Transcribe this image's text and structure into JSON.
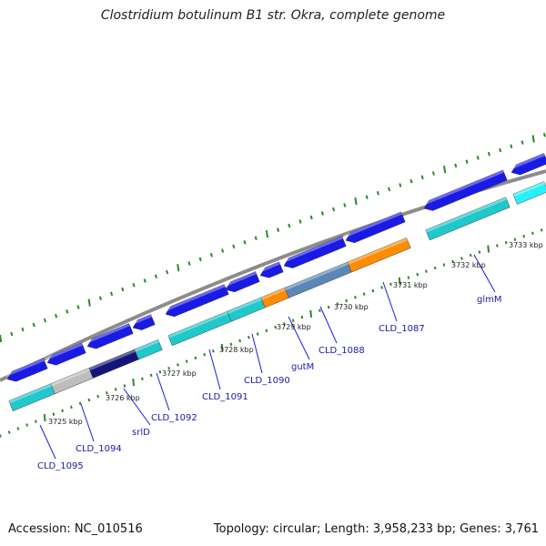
{
  "title": "Clostridium botulinum B1 str. Okra, complete genome",
  "footer": {
    "accession": "Accession: NC_010516",
    "summary": "Topology: circular; Length: 3,958,233 bp; Genes: 3,761"
  },
  "colors": {
    "backbone": "#8c8c8c",
    "cds_blue": "#1a1ae6",
    "cyan": "#20c8cc",
    "orange": "#ff8c00",
    "gray": "#bdbdbd",
    "steel": "#5b86b8",
    "navy": "#14147a",
    "ticks": "#2a8a2a",
    "leader": "#1a1ae6"
  },
  "tick_labels": [
    "3725 kbp",
    "3726 kbp",
    "3727 kbp",
    "3728 kbp",
    "3729 kbp",
    "3730 kbp",
    "3731 kbp",
    "3732 kbp",
    "3733 kbp"
  ],
  "gene_labels": [
    "CLD_1095",
    "CLD_1094",
    "srlD",
    "CLD_1092",
    "CLD_1091",
    "CLD_1090",
    "gutM",
    "CLD_1088",
    "CLD_1087",
    "glmM"
  ]
}
